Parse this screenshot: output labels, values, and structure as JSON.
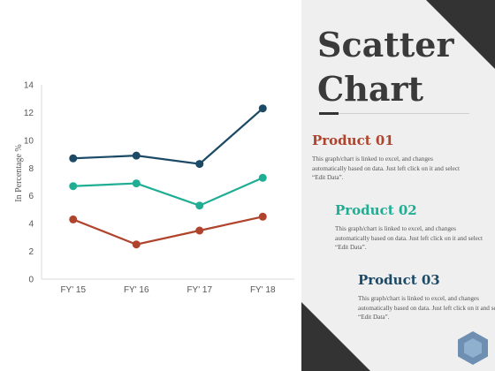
{
  "title": "Scatter Chart",
  "colors": {
    "series1": "#1c4a66",
    "series2": "#1fae93",
    "series3": "#b0432c"
  },
  "chart_data": {
    "type": "line",
    "categories": [
      "FY' 15",
      "FY' 16",
      "FY' 17",
      "FY' 18"
    ],
    "series": [
      {
        "values": [
          8.7,
          8.9,
          8.3,
          12.3
        ]
      },
      {
        "values": [
          6.7,
          6.9,
          5.3,
          7.3
        ]
      },
      {
        "values": [
          4.3,
          2.5,
          3.5,
          4.5
        ]
      }
    ],
    "ylabel": "In Percentage %",
    "ylim": [
      0,
      14
    ],
    "yticks": [
      0,
      2,
      4,
      6,
      8,
      10,
      12,
      14
    ],
    "grid": false
  },
  "products": [
    {
      "title": "Product 01",
      "text": "This graph/chart is linked to excel, and changes automatically based on data. Just left click on it and select “Edit Data”."
    },
    {
      "title": "Product 02",
      "text": "This graph/chart is linked to excel, and changes automatically based on data. Just left click on it and select “Edit Data”."
    },
    {
      "title": "Product 03",
      "text": "This graph/chart is linked to excel, and changes automatically based on data. Just left click on it and select “Edit Data”."
    }
  ]
}
